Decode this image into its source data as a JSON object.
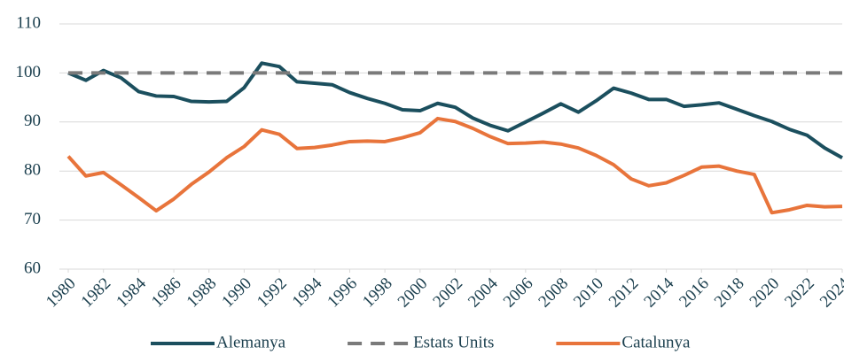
{
  "chart_data": {
    "type": "line",
    "xlim": [
      1980,
      2024
    ],
    "xticks": [
      1980,
      1982,
      1984,
      1986,
      1988,
      1990,
      1992,
      1994,
      1996,
      1998,
      2000,
      2002,
      2004,
      2006,
      2008,
      2010,
      2012,
      2014,
      2016,
      2018,
      2020,
      2022,
      2024
    ],
    "ylim": [
      60,
      110
    ],
    "yticks": [
      60,
      70,
      80,
      90,
      100,
      110
    ],
    "grid": true,
    "legend": "bottom",
    "x": [
      1980,
      1981,
      1982,
      1983,
      1984,
      1985,
      1986,
      1987,
      1988,
      1989,
      1990,
      1991,
      1992,
      1993,
      1994,
      1995,
      1996,
      1997,
      1998,
      1999,
      2000,
      2001,
      2002,
      2003,
      2004,
      2005,
      2006,
      2007,
      2008,
      2009,
      2010,
      2011,
      2012,
      2013,
      2014,
      2015,
      2016,
      2017,
      2018,
      2019,
      2020,
      2021,
      2022,
      2023,
      2024
    ],
    "series": [
      {
        "name": "Alemanya",
        "color": "#1b4f5e",
        "style": "solid",
        "values": [
          100,
          98.5,
          100.5,
          99,
          96.2,
          95.3,
          95.2,
          94.2,
          94.1,
          94.2,
          97,
          102,
          101.3,
          98.2,
          97.9,
          97.6,
          96,
          94.8,
          93.8,
          92.5,
          92.3,
          93.8,
          93,
          90.8,
          89.3,
          88.2,
          90,
          91.8,
          93.7,
          92,
          94.3,
          96.9,
          95.9,
          94.6,
          94.6,
          93.2,
          93.5,
          93.9,
          92.6,
          91.3,
          90.1,
          88.5,
          87.3,
          84.7,
          82.7
        ]
      },
      {
        "name": "Estats Units",
        "color": "#7a7a7a",
        "style": "dashed",
        "values": [
          100,
          100,
          100,
          100,
          100,
          100,
          100,
          100,
          100,
          100,
          100,
          100,
          100,
          100,
          100,
          100,
          100,
          100,
          100,
          100,
          100,
          100,
          100,
          100,
          100,
          100,
          100,
          100,
          100,
          100,
          100,
          100,
          100,
          100,
          100,
          100,
          100,
          100,
          100,
          100,
          100,
          100,
          100,
          100,
          100
        ]
      },
      {
        "name": "Catalunya",
        "color": "#e8743b",
        "style": "solid",
        "values": [
          83,
          79,
          79.7,
          77.2,
          74.6,
          71.9,
          74.3,
          77.3,
          79.8,
          82.7,
          85,
          88.4,
          87.5,
          84.6,
          84.8,
          85.3,
          86,
          86.1,
          86,
          86.8,
          87.8,
          90.7,
          90.1,
          88.7,
          87,
          85.6,
          85.7,
          85.9,
          85.5,
          84.7,
          83.2,
          81.3,
          78.4,
          77,
          77.6,
          79.1,
          80.8,
          81,
          80,
          79.3,
          71.5,
          72.1,
          73,
          72.7,
          72.8
        ]
      }
    ]
  }
}
